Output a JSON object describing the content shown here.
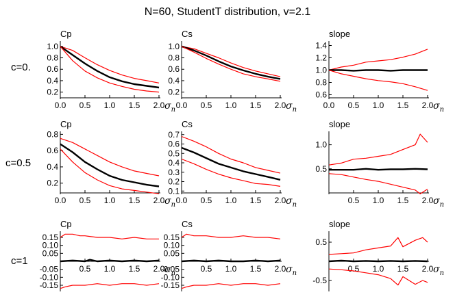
{
  "title": "N=60,  StudentT distribution,  v=2.1",
  "row_labels": [
    "c=0.",
    "c=0.5",
    "c=1"
  ],
  "colors": {
    "mean": "#000000",
    "bounds": "#ff0000"
  },
  "chart_data": [
    {
      "type": "line",
      "title": "Cp",
      "row": 0,
      "col": 0,
      "xlabel": "σ",
      "xlabel_sub": "n",
      "xlim": [
        0,
        2
      ],
      "ylim": [
        0.1,
        1.07
      ],
      "xticks": [
        0,
        0.5,
        1,
        1.5,
        2
      ],
      "xtick_labels": [
        "0.0",
        "0.5",
        "1.0",
        "1.5",
        "2.0"
      ],
      "yticks": [
        0.2,
        0.4,
        0.6,
        0.8,
        1.0
      ],
      "ytick_labels": [
        "0.2",
        "0.4",
        "0.6",
        "0.8",
        "1.0"
      ],
      "xaxis_at": 0.1,
      "series": [
        {
          "name": "upper",
          "x": [
            0,
            0.25,
            0.5,
            0.75,
            1,
            1.25,
            1.5,
            1.75,
            2
          ],
          "values": [
            1.0,
            0.93,
            0.8,
            0.68,
            0.58,
            0.5,
            0.44,
            0.4,
            0.36
          ]
        },
        {
          "name": "mean",
          "x": [
            0,
            0.25,
            0.5,
            0.75,
            1,
            1.25,
            1.5,
            1.75,
            2
          ],
          "values": [
            1.0,
            0.85,
            0.7,
            0.57,
            0.46,
            0.39,
            0.34,
            0.31,
            0.28
          ]
        },
        {
          "name": "lower",
          "x": [
            0,
            0.25,
            0.5,
            0.75,
            1,
            1.25,
            1.5,
            1.75,
            2
          ],
          "values": [
            1.0,
            0.75,
            0.57,
            0.45,
            0.36,
            0.3,
            0.25,
            0.22,
            0.2
          ]
        }
      ]
    },
    {
      "type": "line",
      "title": "Cs",
      "row": 0,
      "col": 1,
      "xlabel": "σ",
      "xlabel_sub": "n",
      "xlim": [
        0,
        2
      ],
      "ylim": [
        0.1,
        1.07
      ],
      "xticks": [
        0,
        0.5,
        1,
        1.5,
        2
      ],
      "xtick_labels": [
        "0.0",
        "0.5",
        "1.0",
        "1.5",
        "2.0"
      ],
      "yticks": [
        0.2,
        0.4,
        0.6,
        0.8,
        1.0
      ],
      "ytick_labels": [
        "0.2",
        "0.4",
        "0.6",
        "0.8",
        "1.0"
      ],
      "xaxis_at": 0.1,
      "series": [
        {
          "name": "upper",
          "x": [
            0,
            0.25,
            0.5,
            0.75,
            1,
            1.25,
            1.5,
            1.75,
            2
          ],
          "values": [
            1.0,
            0.96,
            0.88,
            0.8,
            0.71,
            0.63,
            0.57,
            0.52,
            0.47
          ]
        },
        {
          "name": "mean",
          "x": [
            0,
            0.25,
            0.5,
            0.75,
            1,
            1.25,
            1.5,
            1.75,
            2
          ],
          "values": [
            1.0,
            0.93,
            0.84,
            0.74,
            0.65,
            0.58,
            0.52,
            0.47,
            0.43
          ]
        },
        {
          "name": "lower",
          "x": [
            0,
            0.25,
            0.5,
            0.75,
            1,
            1.25,
            1.5,
            1.75,
            2
          ],
          "values": [
            1.0,
            0.9,
            0.79,
            0.69,
            0.6,
            0.52,
            0.47,
            0.43,
            0.39
          ]
        }
      ]
    },
    {
      "type": "line",
      "title": "slope",
      "row": 0,
      "col": 2,
      "xlabel": "σ",
      "xlabel_sub": "n",
      "xlim": [
        0,
        2
      ],
      "ylim": [
        0.55,
        1.45
      ],
      "xticks": [
        0,
        0.5,
        1,
        1.5,
        2
      ],
      "xtick_labels": [
        "0.0",
        "0.5",
        "1.0",
        "1.5",
        "2.0"
      ],
      "yticks": [
        0.6,
        0.8,
        1.0,
        1.2,
        1.4
      ],
      "ytick_labels": [
        "0.6",
        "0.8",
        "1.0",
        "1.2",
        "1.4"
      ],
      "xaxis_at": 0.55,
      "series": [
        {
          "name": "upper",
          "x": [
            0,
            0.25,
            0.5,
            0.75,
            1,
            1.25,
            1.5,
            1.75,
            2
          ],
          "values": [
            1.0,
            1.05,
            1.08,
            1.13,
            1.15,
            1.17,
            1.21,
            1.26,
            1.34
          ]
        },
        {
          "name": "mean",
          "x": [
            0,
            0.25,
            0.5,
            0.75,
            1,
            1.25,
            1.5,
            1.75,
            2
          ],
          "values": [
            1.0,
            1.0,
            0.99,
            1.0,
            1.0,
            0.99,
            1.0,
            1.0,
            1.0
          ]
        },
        {
          "name": "lower",
          "x": [
            0,
            0.25,
            0.5,
            0.75,
            1,
            1.25,
            1.5,
            1.75,
            2
          ],
          "values": [
            1.0,
            0.94,
            0.9,
            0.86,
            0.83,
            0.81,
            0.78,
            0.73,
            0.67
          ]
        }
      ]
    },
    {
      "type": "line",
      "title": "Cp",
      "row": 1,
      "col": 0,
      "xlabel": "σ",
      "xlabel_sub": "n",
      "xlim": [
        0,
        2
      ],
      "ylim": [
        0.08,
        0.82
      ],
      "xticks": [
        0,
        0.5,
        1,
        1.5,
        2
      ],
      "xtick_labels": [
        "0.0",
        "0.5",
        "1.0",
        "1.5",
        "2.0"
      ],
      "yticks": [
        0.2,
        0.4,
        0.6,
        0.8
      ],
      "ytick_labels": [
        "0.2",
        "0.4",
        "0.6",
        "0.8"
      ],
      "xaxis_at": 0.08,
      "series": [
        {
          "name": "upper",
          "x": [
            0,
            0.25,
            0.5,
            0.75,
            1,
            1.25,
            1.5,
            1.75,
            2
          ],
          "values": [
            0.75,
            0.7,
            0.62,
            0.54,
            0.46,
            0.4,
            0.35,
            0.32,
            0.29
          ]
        },
        {
          "name": "mean",
          "x": [
            0,
            0.25,
            0.5,
            0.75,
            1,
            1.25,
            1.5,
            1.75,
            2
          ],
          "values": [
            0.68,
            0.58,
            0.46,
            0.37,
            0.29,
            0.24,
            0.21,
            0.18,
            0.16
          ]
        },
        {
          "name": "lower",
          "x": [
            0,
            0.25,
            0.5,
            0.75,
            1,
            1.25,
            1.5,
            1.75,
            2
          ],
          "values": [
            0.62,
            0.46,
            0.33,
            0.24,
            0.17,
            0.13,
            0.11,
            0.09,
            0.07
          ]
        }
      ]
    },
    {
      "type": "line",
      "title": "Cs",
      "row": 1,
      "col": 1,
      "xlabel": "σ",
      "xlabel_sub": "n",
      "xlim": [
        0,
        2
      ],
      "ylim": [
        0.08,
        0.72
      ],
      "xticks": [
        0,
        0.5,
        1,
        1.5,
        2
      ],
      "xtick_labels": [
        "0.0",
        "0.5",
        "1.0",
        "1.5",
        "2.0"
      ],
      "yticks": [
        0.1,
        0.2,
        0.3,
        0.4,
        0.5,
        0.6,
        0.7
      ],
      "ytick_labels": [
        "0.1",
        "0.2",
        "0.3",
        "0.4",
        "0.5",
        "0.6",
        "0.7"
      ],
      "xaxis_at": 0.08,
      "series": [
        {
          "name": "upper",
          "x": [
            0,
            0.25,
            0.5,
            0.75,
            1,
            1.25,
            1.5,
            1.75,
            2
          ],
          "values": [
            0.68,
            0.63,
            0.57,
            0.5,
            0.44,
            0.4,
            0.35,
            0.32,
            0.29
          ]
        },
        {
          "name": "mean",
          "x": [
            0,
            0.25,
            0.5,
            0.75,
            1,
            1.25,
            1.5,
            1.75,
            2
          ],
          "values": [
            0.56,
            0.51,
            0.45,
            0.39,
            0.35,
            0.31,
            0.28,
            0.25,
            0.22
          ]
        },
        {
          "name": "lower",
          "x": [
            0,
            0.25,
            0.5,
            0.75,
            1,
            1.25,
            1.5,
            1.75,
            2
          ],
          "values": [
            0.44,
            0.39,
            0.33,
            0.28,
            0.24,
            0.21,
            0.18,
            0.17,
            0.15
          ]
        }
      ]
    },
    {
      "type": "line",
      "title": "slope",
      "row": 1,
      "col": 2,
      "xlabel": "σ",
      "xlabel_sub": "n",
      "xlim": [
        0,
        2
      ],
      "ylim": [
        0,
        1.25
      ],
      "xticks": [
        0.5,
        1,
        1.5,
        2
      ],
      "xtick_labels": [
        "0.5",
        "1.0",
        "1.5",
        "2.0"
      ],
      "yticks": [
        0.5,
        1.0
      ],
      "ytick_labels": [
        "0.5",
        "1.0"
      ],
      "xaxis_at": 0,
      "series": [
        {
          "name": "upper",
          "x": [
            0,
            0.25,
            0.5,
            0.75,
            1,
            1.25,
            1.5,
            1.75,
            1.85,
            2
          ],
          "values": [
            0.58,
            0.62,
            0.7,
            0.72,
            0.76,
            0.8,
            0.9,
            1.0,
            1.22,
            1.05
          ]
        },
        {
          "name": "mean",
          "x": [
            0,
            0.25,
            0.5,
            0.75,
            1,
            1.25,
            1.5,
            1.75,
            2
          ],
          "values": [
            0.48,
            0.48,
            0.48,
            0.5,
            0.48,
            0.49,
            0.49,
            0.5,
            0.49
          ]
        },
        {
          "name": "lower",
          "x": [
            0,
            0.25,
            0.5,
            0.75,
            1,
            1.25,
            1.5,
            1.75,
            1.85,
            2
          ],
          "values": [
            0.4,
            0.38,
            0.33,
            0.28,
            0.24,
            0.18,
            0.12,
            0.06,
            -0.02,
            0.08
          ]
        }
      ]
    },
    {
      "type": "line",
      "title": "Cp",
      "row": 2,
      "col": 0,
      "xlabel": "σ",
      "xlabel_sub": "n",
      "xlim": [
        0,
        2
      ],
      "ylim": [
        -0.18,
        0.18
      ],
      "xticks": [
        0.5,
        1,
        1.5,
        2
      ],
      "xtick_labels": [
        "0.5",
        "1.0",
        "1.5",
        "2.0"
      ],
      "yticks": [
        -0.15,
        -0.1,
        -0.05,
        0.05,
        0.1,
        0.15
      ],
      "ytick_labels": [
        "-0.15",
        "-0.10",
        "-0.05",
        "0.05",
        "0.10",
        "0.15"
      ],
      "xaxis_at": 0,
      "series": [
        {
          "name": "upper",
          "x": [
            0,
            0.1,
            0.25,
            0.4,
            0.5,
            0.75,
            1,
            1.25,
            1.5,
            1.75,
            2
          ],
          "values": [
            0.15,
            0.17,
            0.17,
            0.16,
            0.16,
            0.15,
            0.15,
            0.14,
            0.15,
            0.14,
            0.14
          ]
        },
        {
          "name": "mean",
          "x": [
            0,
            0.25,
            0.5,
            0.6,
            0.75,
            1,
            1.25,
            1.5,
            1.75,
            2
          ],
          "values": [
            0.0,
            0.005,
            0.0,
            0.01,
            0.0,
            0.005,
            0.0,
            0.005,
            0.0,
            0.005
          ]
        },
        {
          "name": "lower",
          "x": [
            0,
            0.1,
            0.25,
            0.5,
            0.75,
            1,
            1.25,
            1.5,
            1.75,
            2
          ],
          "values": [
            -0.17,
            -0.16,
            -0.15,
            -0.15,
            -0.14,
            -0.15,
            -0.14,
            -0.14,
            -0.15,
            -0.14
          ]
        }
      ]
    },
    {
      "type": "line",
      "title": "Cs",
      "row": 2,
      "col": 1,
      "xlabel": "σ",
      "xlabel_sub": "n",
      "xlim": [
        0,
        2
      ],
      "ylim": [
        -0.18,
        0.18
      ],
      "xticks": [
        0.5,
        1,
        1.5,
        2
      ],
      "xtick_labels": [
        "0.5",
        "1.0",
        "1.5",
        "2.0"
      ],
      "yticks": [
        -0.15,
        -0.1,
        -0.05,
        0.05,
        0.1,
        0.15
      ],
      "ytick_labels": [
        "-0.15",
        "-0.10",
        "-0.05",
        "0.05",
        "0.10",
        "0.15"
      ],
      "xaxis_at": 0,
      "series": [
        {
          "name": "upper",
          "x": [
            0,
            0.1,
            0.25,
            0.5,
            0.75,
            1,
            1.25,
            1.5,
            1.75,
            2
          ],
          "values": [
            0.15,
            0.17,
            0.16,
            0.16,
            0.15,
            0.15,
            0.16,
            0.15,
            0.15,
            0.14
          ]
        },
        {
          "name": "mean",
          "x": [
            0,
            0.25,
            0.5,
            0.75,
            1,
            1.25,
            1.5,
            1.75,
            2
          ],
          "values": [
            0.0,
            0.005,
            0.0,
            0.005,
            0.0,
            0.0,
            0.005,
            0.0,
            0.005
          ]
        },
        {
          "name": "lower",
          "x": [
            0,
            0.1,
            0.25,
            0.5,
            0.75,
            1,
            1.25,
            1.5,
            1.75,
            2
          ],
          "values": [
            -0.17,
            -0.16,
            -0.15,
            -0.15,
            -0.14,
            -0.15,
            -0.14,
            -0.14,
            -0.15,
            -0.14
          ]
        }
      ]
    },
    {
      "type": "line",
      "title": "slope",
      "row": 2,
      "col": 2,
      "xlabel": "σ",
      "xlabel_sub": "n",
      "xlim": [
        0,
        2
      ],
      "ylim": [
        -0.75,
        0.75
      ],
      "xticks": [
        0.5,
        1,
        1.5,
        2
      ],
      "xtick_labels": [
        "0.5",
        "1.0",
        "1.5",
        "2.0"
      ],
      "yticks": [
        -0.5,
        0.5
      ],
      "ytick_labels": [
        "-0.5",
        "0.5"
      ],
      "xaxis_at": 0,
      "series": [
        {
          "name": "upper",
          "x": [
            0,
            0.25,
            0.5,
            0.75,
            1,
            1.25,
            1.4,
            1.5,
            1.75,
            1.9,
            2
          ],
          "values": [
            0.18,
            0.2,
            0.22,
            0.3,
            0.35,
            0.4,
            0.62,
            0.38,
            0.55,
            0.62,
            0.5
          ]
        },
        {
          "name": "mean",
          "x": [
            0,
            0.25,
            0.5,
            0.75,
            1,
            1.25,
            1.5,
            1.75,
            2
          ],
          "values": [
            0.0,
            0.02,
            0.0,
            0.01,
            0.0,
            0.01,
            0.0,
            0.01,
            0.0
          ]
        },
        {
          "name": "lower",
          "x": [
            0,
            0.25,
            0.5,
            0.75,
            1,
            1.25,
            1.4,
            1.5,
            1.75,
            1.9,
            2
          ],
          "values": [
            -0.2,
            -0.22,
            -0.25,
            -0.3,
            -0.35,
            -0.45,
            -0.62,
            -0.4,
            -0.6,
            -0.5,
            -0.55
          ]
        }
      ]
    }
  ]
}
